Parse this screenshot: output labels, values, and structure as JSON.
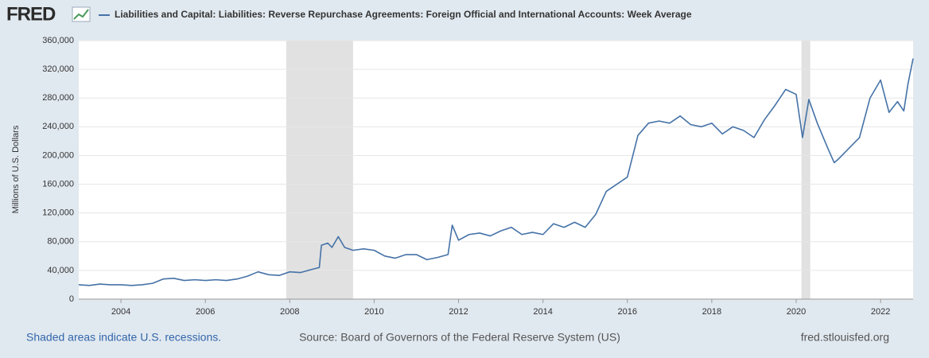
{
  "chart_data": {
    "type": "line",
    "logo": "FRED",
    "y_label": "Millions of U.S. Dollars",
    "notes": [
      "Shaded areas indicate U.S. recessions.",
      "Source: Board of Governors of the Federal Reserve System (US)",
      "fred.stlouisfed.org"
    ],
    "recessions": [
      [
        2007.917,
        2009.5
      ],
      [
        2020.125,
        2020.333
      ]
    ],
    "recession_color": "#e1e1e1",
    "x": [
      2003.0,
      2003.25,
      2003.5,
      2003.75,
      2004.0,
      2004.25,
      2004.5,
      2004.75,
      2005.0,
      2005.25,
      2005.5,
      2005.75,
      2006.0,
      2006.25,
      2006.5,
      2006.75,
      2007.0,
      2007.25,
      2007.5,
      2007.75,
      2008.0,
      2008.25,
      2008.5,
      2008.7,
      2008.75,
      2008.9,
      2009.0,
      2009.15,
      2009.3,
      2009.5,
      2009.75,
      2010.0,
      2010.25,
      2010.5,
      2010.75,
      2011.0,
      2011.25,
      2011.5,
      2011.75,
      2011.85,
      2012.0,
      2012.25,
      2012.5,
      2012.75,
      2013.0,
      2013.25,
      2013.5,
      2013.75,
      2014.0,
      2014.25,
      2014.5,
      2014.75,
      2015.0,
      2015.25,
      2015.5,
      2015.75,
      2016.0,
      2016.25,
      2016.5,
      2016.75,
      2017.0,
      2017.25,
      2017.5,
      2017.75,
      2018.0,
      2018.25,
      2018.5,
      2018.75,
      2019.0,
      2019.25,
      2019.5,
      2019.75,
      2020.0,
      2020.15,
      2020.3,
      2020.5,
      2020.75,
      2020.9,
      2021.0,
      2021.25,
      2021.5,
      2021.75,
      2022.0,
      2022.2,
      2022.4,
      2022.55,
      2022.65,
      2022.77
    ],
    "series": [
      {
        "name": "Liabilities and Capital: Liabilities: Reverse Repurchase Agreements: Foreign Official and International Accounts: Week Average",
        "color": "#4572a7",
        "values": [
          20000,
          19000,
          21000,
          20000,
          20000,
          19000,
          20000,
          22000,
          28000,
          29000,
          26000,
          27000,
          26000,
          27000,
          26000,
          28000,
          32000,
          38000,
          34000,
          33000,
          38000,
          37000,
          41000,
          44000,
          75000,
          78000,
          72000,
          87000,
          72000,
          68000,
          70000,
          68000,
          60000,
          57000,
          62000,
          62000,
          55000,
          58000,
          62000,
          103000,
          82000,
          90000,
          92000,
          88000,
          95000,
          100000,
          90000,
          93000,
          90000,
          105000,
          100000,
          107000,
          100000,
          118000,
          150000,
          160000,
          170000,
          228000,
          245000,
          248000,
          245000,
          255000,
          243000,
          240000,
          245000,
          230000,
          240000,
          235000,
          225000,
          250000,
          270000,
          292000,
          285000,
          225000,
          278000,
          245000,
          210000,
          190000,
          195000,
          210000,
          225000,
          280000,
          305000,
          260000,
          275000,
          262000,
          300000,
          335000
        ]
      }
    ],
    "xlim": [
      2003.0,
      2022.77
    ],
    "xticks": [
      2004,
      2006,
      2008,
      2010,
      2012,
      2014,
      2016,
      2018,
      2020,
      2022
    ],
    "ylim": [
      0,
      360000
    ],
    "yticks": [
      0,
      {
        "value": 40000,
        "label": "40,000"
      },
      {
        "value": 80000,
        "label": "80,000"
      },
      {
        "value": 120000,
        "label": "120,000"
      },
      {
        "value": 160000,
        "label": "160,000"
      },
      {
        "value": 200000,
        "label": "200,000"
      },
      {
        "value": 240000,
        "label": "240,000"
      },
      {
        "value": 280000,
        "label": "280,000"
      },
      {
        "value": 320000,
        "label": "320,000"
      },
      {
        "value": 360000,
        "label": "360,000"
      }
    ],
    "grid": true
  }
}
